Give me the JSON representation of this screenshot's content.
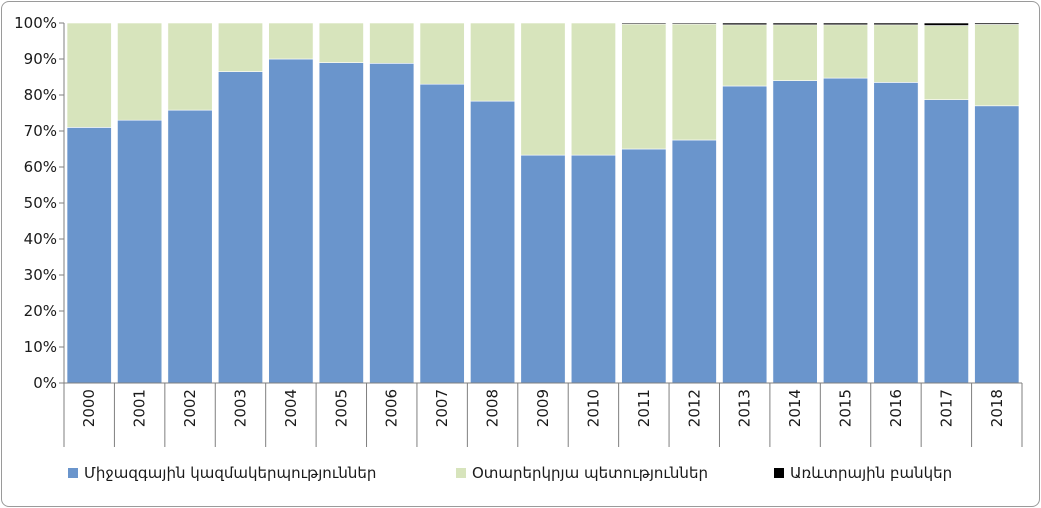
{
  "chart_data": {
    "type": "bar",
    "stacked": true,
    "percent_stacked": true,
    "categories": [
      "2000",
      "2001",
      "2002",
      "2003",
      "2004",
      "2005",
      "2006",
      "2007",
      "2008",
      "2009",
      "2010",
      "2011",
      "2012",
      "2013",
      "2014",
      "2015",
      "2016",
      "2017",
      "2018"
    ],
    "series": [
      {
        "name": "Միջազգային կազմակերպություններ",
        "color": "#6a95cc",
        "values": [
          71.0,
          73.0,
          75.8,
          86.5,
          90.0,
          89.0,
          88.8,
          83.0,
          78.3,
          63.3,
          63.3,
          65.0,
          67.5,
          82.5,
          84.0,
          84.7,
          83.5,
          78.7,
          77.0
        ]
      },
      {
        "name": "Օտարերկրյա պետություններ",
        "color": "#d7e4bc",
        "values": [
          29.0,
          27.0,
          24.2,
          13.5,
          10.0,
          11.0,
          11.2,
          17.0,
          21.7,
          36.7,
          36.7,
          34.7,
          32.2,
          17.0,
          15.5,
          14.8,
          16.0,
          20.6,
          22.6
        ]
      },
      {
        "name": "Առևտրային բանկեր",
        "color": "#000000",
        "values": [
          0,
          0,
          0,
          0,
          0,
          0,
          0,
          0,
          0,
          0,
          0,
          0.3,
          0.3,
          0.5,
          0.5,
          0.5,
          0.5,
          0.7,
          0.4
        ]
      }
    ],
    "ylim": [
      0,
      100
    ],
    "yticks": [
      "0%",
      "10%",
      "20%",
      "30%",
      "40%",
      "50%",
      "60%",
      "70%",
      "80%",
      "90%",
      "100%"
    ],
    "legend_position": "bottom",
    "grid": false
  }
}
